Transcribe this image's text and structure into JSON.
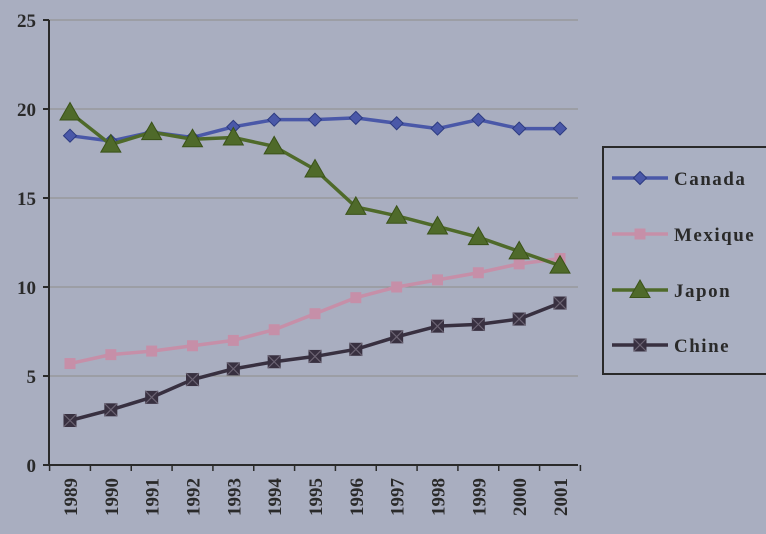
{
  "chart_data": {
    "type": "line",
    "x": [
      "1989",
      "1990",
      "1991",
      "1992",
      "1993",
      "1994",
      "1995",
      "1996",
      "1997",
      "1998",
      "1999",
      "2000",
      "2001"
    ],
    "ylim": [
      0,
      25
    ],
    "yticks": [
      "0",
      "5",
      "10",
      "15",
      "20",
      "25"
    ],
    "grid": true,
    "legend_position": "right",
    "series": [
      {
        "name": "Canada",
        "color": "#4a58a8",
        "marker": "diamond",
        "values": [
          18.5,
          18.2,
          18.7,
          18.4,
          19.0,
          19.4,
          19.4,
          19.5,
          19.2,
          18.9,
          19.4,
          18.9,
          18.9
        ]
      },
      {
        "name": "Mexique",
        "color": "#c68fa8",
        "marker": "square",
        "values": [
          5.7,
          6.2,
          6.4,
          6.7,
          7.0,
          7.6,
          8.5,
          9.4,
          10.0,
          10.4,
          10.8,
          11.3,
          11.6
        ]
      },
      {
        "name": "Japon",
        "color": "#4f6a2a",
        "marker": "triangle",
        "values": [
          19.8,
          18.0,
          18.7,
          18.3,
          18.4,
          17.9,
          16.6,
          14.5,
          14.0,
          13.4,
          12.8,
          12.0,
          11.2
        ]
      },
      {
        "name": "Chine",
        "color": "#383040",
        "marker": "x-square",
        "values": [
          2.5,
          3.1,
          3.8,
          4.8,
          5.4,
          5.8,
          6.1,
          6.5,
          7.2,
          7.8,
          7.9,
          8.2,
          9.1
        ]
      }
    ]
  }
}
